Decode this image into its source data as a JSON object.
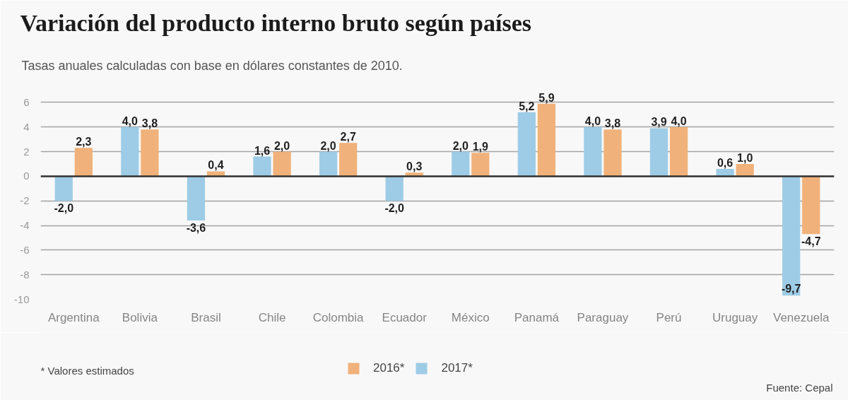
{
  "chart_data": {
    "type": "bar",
    "title": "Variación del producto interno bruto según países",
    "subtitle": "Tasas anuales calculadas con base en dólares constantes de 2010.",
    "categories": [
      "Argentina",
      "Bolivia",
      "Brasil",
      "Chile",
      "Colombia",
      "Ecuador",
      "México",
      "Panamá",
      "Paraguay",
      "Perú",
      "Uruguay",
      "Venezuela"
    ],
    "series": [
      {
        "name": "2017*",
        "color": "#9ecce6",
        "values": [
          -2.0,
          4.0,
          -3.6,
          1.6,
          2.0,
          -2.0,
          2.0,
          5.2,
          4.0,
          3.9,
          0.6,
          -9.7
        ],
        "value_labels": [
          "-2,0",
          "4,0",
          "-3,6",
          "1,6",
          "2,0",
          "-2,0",
          "2,0",
          "5,2",
          "4,0",
          "3,9",
          "0,6",
          "-9,7"
        ]
      },
      {
        "name": "2016*",
        "color": "#f0b27a",
        "values": [
          2.3,
          3.8,
          0.4,
          2.0,
          2.7,
          0.3,
          1.9,
          5.9,
          3.8,
          4.0,
          1.0,
          -4.7
        ],
        "value_labels": [
          "2,3",
          "3,8",
          "0,4",
          "2,0",
          "2,7",
          "0,3",
          "1,9",
          "5,9",
          "3,8",
          "4,0",
          "1,0",
          "-4,7"
        ]
      }
    ],
    "ylim": [
      -10,
      7
    ],
    "yticks": [
      -10,
      -8,
      -6,
      -4,
      -2,
      0,
      2,
      4,
      6
    ],
    "grid": "y",
    "legend": "bottom",
    "ref_lines": [
      {
        "axis": "y",
        "value": 0,
        "color": "#333333"
      }
    ],
    "annotations": [
      "* Valores estimados",
      "Fuente: Cepal"
    ]
  }
}
